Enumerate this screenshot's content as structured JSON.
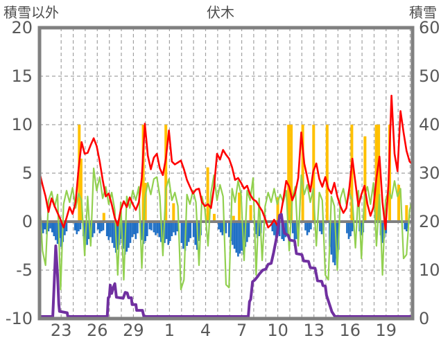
{
  "chart_data": {
    "type": "line",
    "title": "伏木",
    "grid": true,
    "legend": "none",
    "left_axis": {
      "label": "積雪以外",
      "min": -10,
      "max": 20,
      "ticks": [
        20,
        15,
        10,
        5,
        0,
        -5,
        -10
      ]
    },
    "right_axis": {
      "label": "積雪",
      "min": 0,
      "max": 60,
      "ticks": [
        60,
        50,
        40,
        30,
        20,
        10,
        0
      ]
    },
    "x_axis": {
      "tick_labels": [
        "23",
        "26",
        "29",
        "1",
        "4",
        "7",
        "10",
        "13",
        "16",
        "19"
      ],
      "first_gridline_day_offset": 1.8,
      "gridline_step_days": 1,
      "gridline_count": 30,
      "label_every_n_gridlines": 3,
      "days_total": 31
    },
    "colors": {
      "red_line": "#ff0000",
      "green_line": "#92d050",
      "orange_bars": "#ffc000",
      "blue_bars": "#1f6fc5",
      "purple_line": "#7030a0",
      "frame": "#808080",
      "gridline": "#a0a0a0",
      "zero_line": "#808080",
      "axis_text": "#595959",
      "header_text": "#4d4d4d",
      "background": "#ffffff"
    },
    "series": [
      {
        "name": "orange-bars",
        "type": "bar",
        "axis": "left",
        "color": "#ffc000",
        "points": [
          [
            3.3,
            10
          ],
          [
            3.45,
            6.5
          ],
          [
            5.35,
            0.9
          ],
          [
            8.62,
            10
          ],
          [
            8.8,
            4.0
          ],
          [
            10.5,
            10
          ],
          [
            11.14,
            1.9
          ],
          [
            13.98,
            5.6
          ],
          [
            14.52,
            0.8
          ],
          [
            16.12,
            0.6
          ],
          [
            16.6,
            3.0
          ],
          [
            17.55,
            1.7
          ],
          [
            19.8,
            2.5
          ],
          [
            20.7,
            10
          ],
          [
            20.92,
            10
          ],
          [
            21.87,
            10
          ],
          [
            22.78,
            10
          ],
          [
            23.9,
            10
          ],
          [
            25.95,
            10
          ],
          [
            27.05,
            8.8
          ],
          [
            27.98,
            10
          ],
          [
            28.18,
            10
          ],
          [
            29.1,
            10
          ],
          [
            29.85,
            3.8
          ],
          [
            30.5,
            1.7
          ]
        ]
      },
      {
        "name": "blue-bars",
        "type": "bar",
        "axis": "left",
        "color": "#1f6fc5",
        "points": [
          [
            0.15,
            -0.9
          ],
          [
            0.3,
            -1.2
          ],
          [
            0.45,
            -0.8
          ],
          [
            0.6,
            -1.3
          ],
          [
            0.75,
            -1.0
          ],
          [
            0.9,
            -0.7
          ],
          [
            1.05,
            -1.1
          ],
          [
            1.2,
            -1.5
          ],
          [
            1.35,
            -1.9
          ],
          [
            1.5,
            -2.3
          ],
          [
            1.65,
            -1.7
          ],
          [
            1.8,
            -2.6
          ],
          [
            1.95,
            -2.1
          ],
          [
            2.1,
            -1.4
          ],
          [
            2.25,
            -1.0
          ],
          [
            2.95,
            -0.9
          ],
          [
            3.1,
            -1.3
          ],
          [
            3.25,
            -1.0
          ],
          [
            3.4,
            -0.8
          ],
          [
            3.65,
            -1.5
          ],
          [
            3.8,
            -2.0
          ],
          [
            3.95,
            -2.4
          ],
          [
            4.1,
            -1.8
          ],
          [
            4.25,
            -2.2
          ],
          [
            4.4,
            -1.6
          ],
          [
            4.55,
            -1.2
          ],
          [
            4.85,
            -0.8
          ],
          [
            5.0,
            -1.2
          ],
          [
            5.15,
            -1.0
          ],
          [
            5.3,
            -0.9
          ],
          [
            5.6,
            -1.5
          ],
          [
            5.75,
            -1.9
          ],
          [
            5.9,
            -1.6
          ],
          [
            6.05,
            -2.2
          ],
          [
            6.2,
            -2.7
          ],
          [
            6.35,
            -3.2
          ],
          [
            6.5,
            -2.9
          ],
          [
            6.65,
            -2.4
          ],
          [
            6.8,
            -1.8
          ],
          [
            6.95,
            -2.8
          ],
          [
            7.1,
            -3.4
          ],
          [
            7.25,
            -3.1
          ],
          [
            7.4,
            -2.7
          ],
          [
            7.55,
            -2.2
          ],
          [
            7.7,
            -1.6
          ],
          [
            7.85,
            -1.3
          ],
          [
            8.0,
            -1.8
          ],
          [
            8.15,
            -1.2
          ],
          [
            8.5,
            -1.9
          ],
          [
            8.65,
            -2.3
          ],
          [
            8.8,
            -2.0
          ],
          [
            8.95,
            -1.5
          ],
          [
            9.15,
            -0.8
          ],
          [
            9.3,
            -0.9
          ],
          [
            9.5,
            -1.1
          ],
          [
            9.65,
            -1.4
          ],
          [
            9.8,
            -1.2
          ],
          [
            9.95,
            -1.6
          ],
          [
            10.1,
            -2.1
          ],
          [
            10.25,
            -2.6
          ],
          [
            10.4,
            -2.2
          ],
          [
            10.55,
            -1.8
          ],
          [
            10.7,
            -2.4
          ],
          [
            10.85,
            -2.0
          ],
          [
            11.0,
            -1.5
          ],
          [
            11.15,
            -1.1
          ],
          [
            11.3,
            -1.4
          ],
          [
            11.45,
            -1.0
          ],
          [
            11.8,
            -2.2
          ],
          [
            11.95,
            -2.8
          ],
          [
            12.1,
            -3.0
          ],
          [
            12.25,
            -2.5
          ],
          [
            12.4,
            -2.1
          ],
          [
            12.55,
            -1.7
          ],
          [
            12.8,
            -1.6
          ],
          [
            12.95,
            -2.4
          ],
          [
            13.1,
            -2.9
          ],
          [
            13.25,
            -2.0
          ],
          [
            13.4,
            -1.4
          ],
          [
            14.9,
            -0.8
          ],
          [
            15.05,
            -1.1
          ],
          [
            15.2,
            -1.4
          ],
          [
            15.35,
            -1.0
          ],
          [
            15.5,
            -1.2
          ],
          [
            15.75,
            -1.6
          ],
          [
            15.9,
            -2.0
          ],
          [
            16.05,
            -2.4
          ],
          [
            16.2,
            -2.8
          ],
          [
            16.35,
            -3.2
          ],
          [
            16.5,
            -3.6
          ],
          [
            16.65,
            -3.3
          ],
          [
            16.8,
            -3.0
          ],
          [
            16.95,
            -3.4
          ],
          [
            17.1,
            -2.6
          ],
          [
            17.25,
            -2.1
          ],
          [
            17.4,
            -1.6
          ],
          [
            17.95,
            -1.3
          ],
          [
            18.1,
            -1.7
          ],
          [
            18.25,
            -1.5
          ],
          [
            18.4,
            -1.2
          ],
          [
            19.35,
            -1.0
          ],
          [
            19.5,
            -1.4
          ],
          [
            19.65,
            -1.6
          ],
          [
            19.8,
            -1.2
          ],
          [
            19.95,
            -1.5
          ],
          [
            20.15,
            -1.8
          ],
          [
            20.3,
            -2.0
          ],
          [
            20.45,
            -1.6
          ],
          [
            20.6,
            -1.4
          ],
          [
            21.05,
            -1.2
          ],
          [
            21.2,
            -2.5
          ],
          [
            21.35,
            -1.8
          ],
          [
            21.5,
            -1.0
          ],
          [
            22.1,
            -0.9
          ],
          [
            22.25,
            -1.4
          ],
          [
            22.4,
            -1.1
          ],
          [
            22.55,
            -0.8
          ],
          [
            23.3,
            -1.0
          ],
          [
            23.45,
            -1.3
          ],
          [
            23.6,
            -0.9
          ],
          [
            24.1,
            -2.6
          ],
          [
            24.25,
            -3.4
          ],
          [
            24.4,
            -4.2
          ],
          [
            24.55,
            -4.5
          ],
          [
            24.7,
            -3.8
          ],
          [
            24.85,
            -2.9
          ],
          [
            25.55,
            -1.2
          ],
          [
            25.7,
            -1.8
          ],
          [
            25.85,
            -1.5
          ],
          [
            26.0,
            -1.0
          ],
          [
            26.6,
            -1.0
          ],
          [
            26.75,
            -1.4
          ],
          [
            26.9,
            -1.1
          ],
          [
            28.35,
            -1.4
          ],
          [
            28.5,
            -2.2
          ],
          [
            28.65,
            -1.7
          ],
          [
            28.8,
            -1.2
          ],
          [
            30.35,
            -0.8
          ],
          [
            30.5,
            -1.0
          ],
          [
            30.62,
            -0.7
          ]
        ]
      },
      {
        "name": "green-line",
        "type": "line",
        "axis": "left",
        "color": "#92d050",
        "step_days": 0.25,
        "values": [
          2.6,
          -3.0,
          -4.5,
          2.2,
          3.1,
          1.5,
          2.8,
          -7.0,
          1.8,
          3.2,
          2.0,
          3.5,
          1.4,
          2.9,
          2.2,
          -3.5,
          2.6,
          -2.5,
          5.5,
          3.2,
          4.6,
          2.4,
          3.6,
          1.8,
          3.0,
          1.2,
          -5.5,
          2.0,
          -6.0,
          2.6,
          1.4,
          3.2,
          2.2,
          3.6,
          -4.8,
          2.4,
          4.0,
          2.8,
          4.4,
          4.6,
          2.6,
          -3.5,
          3.4,
          4.4,
          2.2,
          3.0,
          1.6,
          -7.0,
          -6.0,
          2.8,
          1.8,
          3.2,
          2.0,
          -4.5,
          2.6,
          1.2,
          -2.5,
          3.0,
          4.8,
          2.2,
          3.8,
          2.6,
          -6.5,
          -6.8,
          3.4,
          2.0,
          4.2,
          2.8,
          -4.0,
          3.2,
          2.2,
          4.5,
          -5.5,
          2.4,
          -4.0,
          1.6,
          3.0,
          2.0,
          3.4,
          1.8,
          2.8,
          2.0,
          3.2,
          -3.0,
          2.4,
          3.6,
          -2.5,
          4.8,
          2.8,
          3.8,
          2.0,
          3.4,
          -2.5,
          3.0,
          2.2,
          -5.5,
          -6.0,
          2.6,
          1.6,
          -5.0,
          2.4,
          3.4,
          1.8,
          3.0,
          2.2,
          -2.7,
          3.2,
          -3.8,
          2.6,
          3.6,
          1.8,
          4.0,
          -2.5,
          2.8,
          -5.5,
          2.2,
          3.2,
          2.4,
          4.2,
          2.6,
          3.4,
          -3.8,
          -3.4,
          1.2,
          2.3
        ]
      },
      {
        "name": "red-line",
        "type": "line",
        "axis": "left",
        "color": "#ff0000",
        "step_days": 0.25,
        "values": [
          5.1,
          3.8,
          2.6,
          1.0,
          2.4,
          1.6,
          0.9,
          0.2,
          -0.6,
          0.4,
          1.5,
          0.8,
          2.0,
          5.5,
          8.2,
          7.0,
          7.1,
          7.9,
          8.6,
          7.8,
          6.2,
          4.3,
          2.6,
          2.9,
          1.8,
          0.4,
          -0.4,
          1.2,
          2.1,
          1.5,
          2.5,
          1.8,
          1.2,
          2.0,
          4.5,
          10.1,
          6.8,
          5.4,
          6.6,
          7.0,
          5.5,
          4.8,
          6.5,
          9.4,
          6.2,
          5.9,
          6.1,
          6.3,
          5.4,
          4.3,
          3.6,
          2.9,
          3.3,
          3.4,
          2.0,
          1.6,
          1.8,
          1.4,
          3.5,
          7.0,
          6.4,
          7.4,
          6.9,
          6.5,
          5.6,
          4.3,
          4.5,
          4.0,
          3.4,
          3.7,
          2.8,
          2.3,
          2.1,
          1.6,
          1.1,
          0.3,
          -0.6,
          -0.3,
          0.2,
          -0.4,
          0.5,
          2.2,
          4.2,
          3.6,
          2.2,
          3.0,
          4.5,
          9.2,
          6.0,
          4.6,
          3.1,
          5.2,
          6.0,
          4.4,
          3.6,
          4.6,
          3.4,
          2.9,
          4.0,
          2.6,
          1.6,
          0.9,
          1.4,
          3.5,
          6.5,
          4.0,
          1.6,
          2.8,
          3.7,
          1.8,
          0.6,
          1.5,
          4.5,
          6.7,
          2.0,
          -0.8,
          4.0,
          13.0,
          7.0,
          5.2,
          11.4,
          9.2,
          7.3,
          6.2,
          5.9
        ]
      },
      {
        "name": "purple-snow-line",
        "type": "line",
        "axis": "right",
        "color": "#7030a0",
        "points": [
          [
            0,
            0
          ],
          [
            1.1,
            0
          ],
          [
            1.2,
            6
          ],
          [
            1.35,
            15
          ],
          [
            1.5,
            9
          ],
          [
            1.6,
            3
          ],
          [
            1.66,
            1.5
          ],
          [
            2.3,
            1.2
          ],
          [
            2.35,
            0
          ],
          [
            5.63,
            0
          ],
          [
            5.71,
            4.3
          ],
          [
            5.8,
            4.5
          ],
          [
            5.88,
            6.9
          ],
          [
            6.0,
            5.2
          ],
          [
            6.14,
            6.5
          ],
          [
            6.26,
            7.2
          ],
          [
            6.39,
            4.4
          ],
          [
            6.95,
            4.2
          ],
          [
            7.12,
            5.4
          ],
          [
            7.29,
            5.3
          ],
          [
            7.4,
            4.3
          ],
          [
            7.63,
            4.3
          ],
          [
            7.69,
            2.9
          ],
          [
            8.01,
            2.9
          ],
          [
            8.07,
            1.7
          ],
          [
            8.55,
            1.7
          ],
          [
            8.67,
            0
          ],
          [
            17.35,
            0
          ],
          [
            17.45,
            3.5
          ],
          [
            17.55,
            4.0
          ],
          [
            17.7,
            7.6
          ],
          [
            17.9,
            8.0
          ],
          [
            18.1,
            8.6
          ],
          [
            18.3,
            9.3
          ],
          [
            18.55,
            10.0
          ],
          [
            18.8,
            10.2
          ],
          [
            19.0,
            11.2
          ],
          [
            19.25,
            11.4
          ],
          [
            19.45,
            13.6
          ],
          [
            19.6,
            15.5
          ],
          [
            19.75,
            17.4
          ],
          [
            19.85,
            19.3
          ],
          [
            19.95,
            21.3
          ],
          [
            20.1,
            21.5
          ],
          [
            20.2,
            19.6
          ],
          [
            20.35,
            17.6
          ],
          [
            20.65,
            17.2
          ],
          [
            20.8,
            16.2
          ],
          [
            21.2,
            16.0
          ],
          [
            21.35,
            13.4
          ],
          [
            21.8,
            13.2
          ],
          [
            21.95,
            11.9
          ],
          [
            22.35,
            11.8
          ],
          [
            22.5,
            10.5
          ],
          [
            22.9,
            10.4
          ],
          [
            23.1,
            7.8
          ],
          [
            23.45,
            7.7
          ],
          [
            23.55,
            6.8
          ],
          [
            23.75,
            6.7
          ],
          [
            23.85,
            4.8
          ],
          [
            24.1,
            2.9
          ],
          [
            24.3,
            1.4
          ],
          [
            24.55,
            0
          ],
          [
            31,
            0
          ]
        ]
      }
    ]
  }
}
